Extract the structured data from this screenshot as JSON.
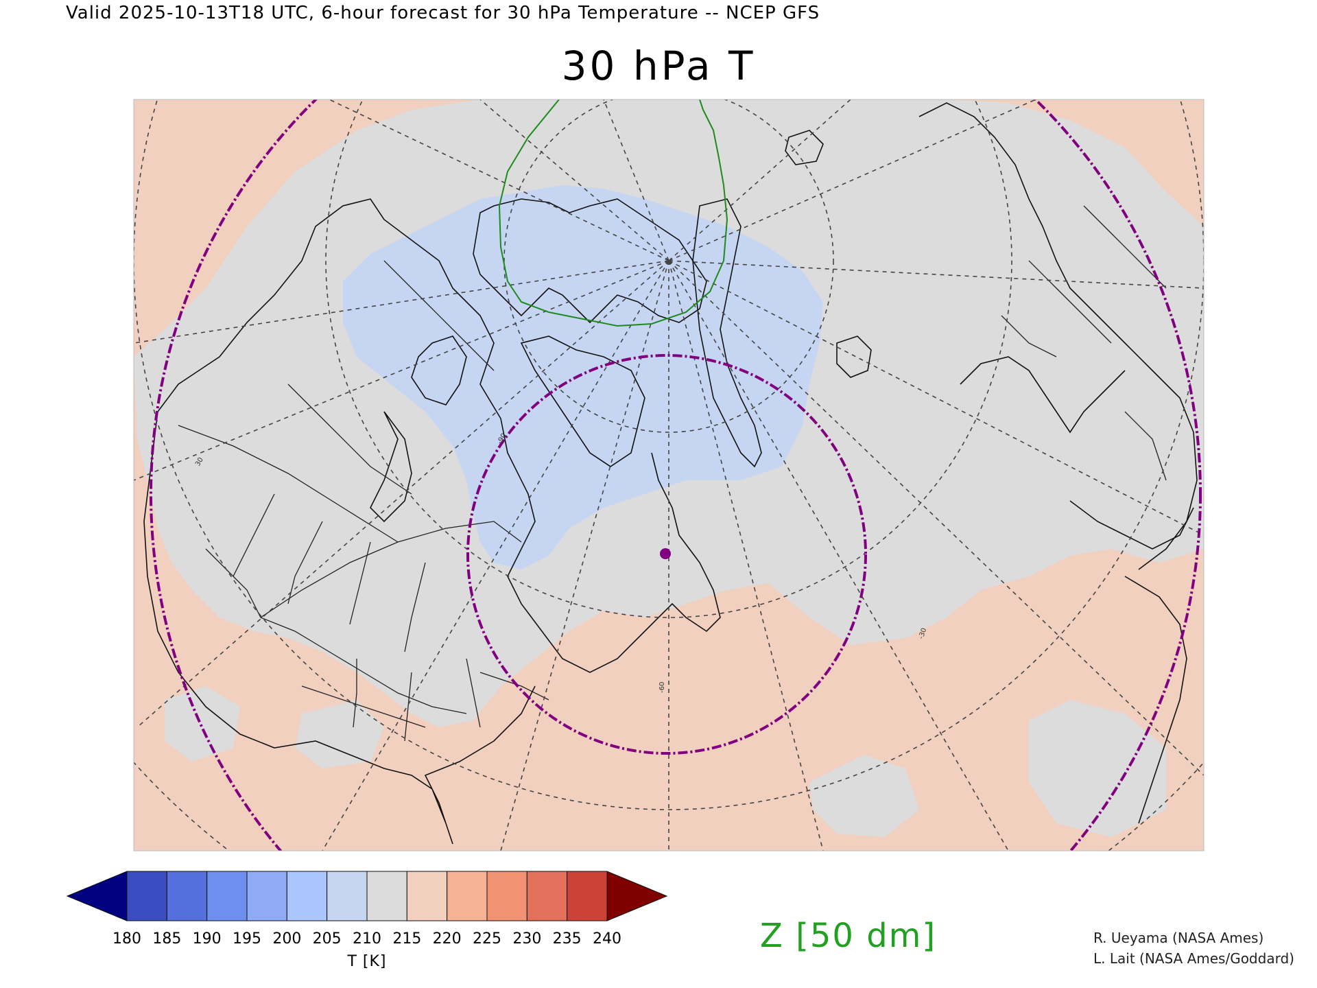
{
  "header": "Valid 2025-10-13T18 UTC, 6-hour forecast for 30 hPa Temperature -- NCEP GFS",
  "title": "30 hPa T",
  "map": {
    "projection": "polar stereographic",
    "colors": {
      "warm_fill": "#f1d0bf",
      "neutral_fill": "#dcdcdc",
      "cold_fill": "#c6d6f2",
      "coastline": "#111111",
      "graticule": "#444444",
      "purple_circle": "#800080",
      "z_contour": "#1e8a1e"
    },
    "graticule_labels": [
      "-60",
      "-30",
      "30",
      "-90"
    ],
    "marker": "point-marker"
  },
  "colorbar": {
    "labels": [
      "180",
      "185",
      "190",
      "195",
      "200",
      "205",
      "210",
      "215",
      "220",
      "225",
      "230",
      "235",
      "240"
    ],
    "colors": [
      "#000080",
      "#3a4dc0",
      "#5570dc",
      "#6e8ef0",
      "#8fabf8",
      "#abc6fc",
      "#c6d6f2",
      "#dcdcdc",
      "#f1d0bf",
      "#f5b294",
      "#f19272",
      "#e2705a",
      "#cc4236",
      "#800000"
    ],
    "unit": "T [K]"
  },
  "legend": "Z [50 dm]",
  "credits": [
    "R. Ueyama (NASA Ames)",
    "L. Lait (NASA Ames/Goddard)"
  ]
}
